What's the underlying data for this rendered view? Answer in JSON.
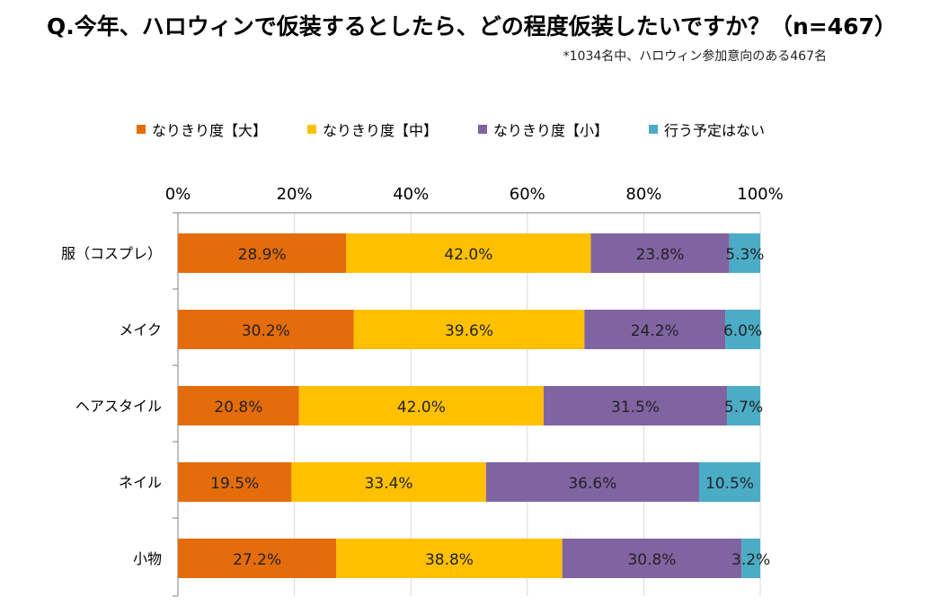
{
  "title": "Q.今年、ハロウィンで仮装するとしたら、どの程度仮装したいですか？（n=467）",
  "note": "*1034名中、ハロウィン参加意向のある467名",
  "chart_data": {
    "type": "bar",
    "orientation": "horizontal",
    "stacked": "percent",
    "categories": [
      "服（コスプレ）",
      "メイク",
      "ヘアスタイル",
      "ネイル",
      "小物"
    ],
    "series": [
      {
        "name": "なりきり度【大】",
        "color": "#E46C0A",
        "values": [
          28.9,
          30.2,
          20.8,
          19.5,
          27.2
        ],
        "labels": [
          "28.9%",
          "30.2%",
          "20.8%",
          "19.5%",
          "27.2%"
        ]
      },
      {
        "name": "なりきり度【中】",
        "color": "#FFC000",
        "values": [
          42.0,
          39.6,
          42.0,
          33.4,
          38.8
        ],
        "labels": [
          "42.0%",
          "39.6%",
          "42.0%",
          "33.4%",
          "38.8%"
        ]
      },
      {
        "name": "なりきり度【小】",
        "color": "#8064A2",
        "values": [
          23.8,
          24.2,
          31.5,
          36.6,
          30.8
        ],
        "labels": [
          "23.8%",
          "24.2%",
          "31.5%",
          "36.6%",
          "30.8%"
        ]
      },
      {
        "name": "行う予定はない",
        "color": "#4BACC6",
        "values": [
          5.3,
          6.0,
          5.7,
          10.5,
          3.2
        ],
        "labels": [
          "5.3%",
          "6.0%",
          "5.7%",
          "10.5%",
          "3.2%"
        ]
      }
    ],
    "xlim": [
      0,
      100
    ],
    "xticks": [
      "0%",
      "20%",
      "40%",
      "60%",
      "80%",
      "100%"
    ],
    "xaxis_position": "top",
    "grid": true,
    "legend_position": "top"
  }
}
